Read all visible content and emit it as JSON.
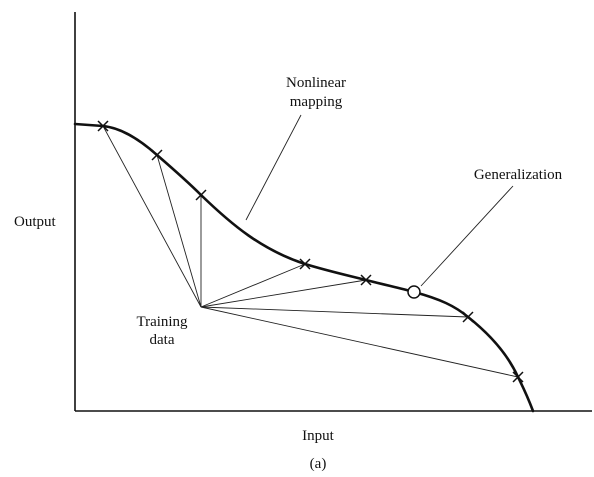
{
  "labels": {
    "y_axis": "Output",
    "x_axis": "Input",
    "nonlinear_line1": "Nonlinear",
    "nonlinear_line2": "mapping",
    "generalization": "Generalization",
    "training_line1": "Training",
    "training_line2": "data",
    "caption": "(a)"
  },
  "training_point_count": 7,
  "generalization_point_count": 1
}
